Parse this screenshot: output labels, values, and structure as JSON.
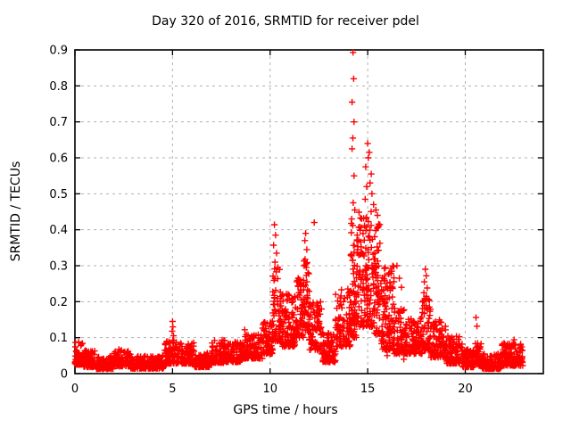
{
  "chart_data": {
    "type": "scatter",
    "title": "Day 320 of 2016, SRMTID for receiver pdel",
    "xlabel": "GPS time / hours",
    "ylabel": "SRMTID / TECUs",
    "xlim": [
      0,
      24
    ],
    "ylim": [
      0,
      0.9
    ],
    "xticks": [
      {
        "v": 0,
        "label": "0"
      },
      {
        "v": 5,
        "label": "5"
      },
      {
        "v": 10,
        "label": "10"
      },
      {
        "v": 15,
        "label": "15"
      },
      {
        "v": 20,
        "label": "20"
      }
    ],
    "yticks": [
      {
        "v": 0.0,
        "label": "0"
      },
      {
        "v": 0.1,
        "label": "0.1"
      },
      {
        "v": 0.2,
        "label": "0.2"
      },
      {
        "v": 0.3,
        "label": "0.3"
      },
      {
        "v": 0.4,
        "label": "0.4"
      },
      {
        "v": 0.5,
        "label": "0.5"
      },
      {
        "v": 0.6,
        "label": "0.6"
      },
      {
        "v": 0.7,
        "label": "0.7"
      },
      {
        "v": 0.8,
        "label": "0.8"
      },
      {
        "v": 0.9,
        "label": "0.9"
      }
    ],
    "grid": true,
    "legend": false,
    "marker": "plus",
    "marker_color": "#ff0000",
    "grid_color": "#b0b0b0",
    "axis_color": "#000000",
    "data_x_end": 22.95,
    "bands_format": [
      "x_start_hours",
      "x_end_hours",
      "y_min_tecus",
      "y_max_tecus",
      "point_count"
    ],
    "bands": [
      [
        0.0,
        0.45,
        0.025,
        0.09,
        70
      ],
      [
        0.45,
        1.05,
        0.018,
        0.065,
        80
      ],
      [
        1.05,
        2.0,
        0.013,
        0.05,
        120
      ],
      [
        2.0,
        2.85,
        0.02,
        0.068,
        110
      ],
      [
        2.85,
        4.6,
        0.014,
        0.052,
        190
      ],
      [
        4.6,
        5.15,
        0.028,
        0.095,
        65
      ],
      [
        5.15,
        6.1,
        0.028,
        0.088,
        100
      ],
      [
        6.1,
        7.0,
        0.018,
        0.058,
        100
      ],
      [
        7.0,
        7.75,
        0.03,
        0.095,
        85
      ],
      [
        7.75,
        8.6,
        0.032,
        0.088,
        90
      ],
      [
        8.6,
        9.6,
        0.042,
        0.11,
        110
      ],
      [
        9.6,
        10.12,
        0.055,
        0.15,
        65
      ],
      [
        10.12,
        10.5,
        0.09,
        0.3,
        55
      ],
      [
        10.5,
        11.3,
        0.075,
        0.23,
        115
      ],
      [
        11.3,
        11.72,
        0.1,
        0.27,
        60
      ],
      [
        11.72,
        12.0,
        0.12,
        0.33,
        45
      ],
      [
        12.0,
        12.65,
        0.065,
        0.2,
        85
      ],
      [
        12.65,
        13.35,
        0.032,
        0.115,
        90
      ],
      [
        13.35,
        14.12,
        0.075,
        0.24,
        95
      ],
      [
        14.12,
        14.42,
        0.1,
        0.42,
        60
      ],
      [
        14.42,
        15.32,
        0.13,
        0.46,
        150
      ],
      [
        15.32,
        15.68,
        0.11,
        0.42,
        60
      ],
      [
        15.68,
        16.35,
        0.065,
        0.3,
        115
      ],
      [
        16.35,
        17.05,
        0.055,
        0.185,
        90
      ],
      [
        17.05,
        17.8,
        0.055,
        0.16,
        90
      ],
      [
        17.8,
        18.22,
        0.065,
        0.22,
        55
      ],
      [
        18.22,
        19.0,
        0.045,
        0.15,
        90
      ],
      [
        19.0,
        19.85,
        0.028,
        0.105,
        95
      ],
      [
        19.85,
        20.45,
        0.018,
        0.068,
        80
      ],
      [
        20.45,
        20.85,
        0.022,
        0.09,
        50
      ],
      [
        20.85,
        21.85,
        0.013,
        0.055,
        125
      ],
      [
        21.85,
        22.95,
        0.022,
        0.085,
        150
      ]
    ],
    "notable_points": [
      [
        5.0,
        0.145
      ],
      [
        5.02,
        0.13
      ],
      [
        4.98,
        0.118
      ],
      [
        5.05,
        0.105
      ],
      [
        8.7,
        0.122
      ],
      [
        10.22,
        0.414
      ],
      [
        10.28,
        0.385
      ],
      [
        10.18,
        0.357
      ],
      [
        10.33,
        0.335
      ],
      [
        10.25,
        0.31
      ],
      [
        10.4,
        0.295
      ],
      [
        11.82,
        0.39
      ],
      [
        11.78,
        0.37
      ],
      [
        11.88,
        0.345
      ],
      [
        11.75,
        0.3
      ],
      [
        12.26,
        0.42
      ],
      [
        14.25,
        0.893
      ],
      [
        14.28,
        0.82
      ],
      [
        14.2,
        0.755
      ],
      [
        14.3,
        0.7
      ],
      [
        14.24,
        0.655
      ],
      [
        14.2,
        0.625
      ],
      [
        14.3,
        0.55
      ],
      [
        14.26,
        0.475
      ],
      [
        14.34,
        0.455
      ],
      [
        14.18,
        0.43
      ],
      [
        15.0,
        0.64
      ],
      [
        15.08,
        0.615
      ],
      [
        15.03,
        0.6
      ],
      [
        14.9,
        0.575
      ],
      [
        15.18,
        0.555
      ],
      [
        15.12,
        0.53
      ],
      [
        14.95,
        0.52
      ],
      [
        15.22,
        0.5
      ],
      [
        14.87,
        0.485
      ],
      [
        15.3,
        0.47
      ],
      [
        15.42,
        0.455
      ],
      [
        15.5,
        0.44
      ],
      [
        16.5,
        0.3
      ],
      [
        16.62,
        0.265
      ],
      [
        16.73,
        0.24
      ],
      [
        16.85,
        0.04
      ],
      [
        16.0,
        0.05
      ],
      [
        13.0,
        0.035
      ],
      [
        17.95,
        0.29
      ],
      [
        18.0,
        0.272
      ],
      [
        17.9,
        0.255
      ],
      [
        18.05,
        0.238
      ],
      [
        17.88,
        0.225
      ],
      [
        20.55,
        0.156
      ],
      [
        20.6,
        0.132
      ],
      [
        22.5,
        0.094
      ]
    ]
  }
}
